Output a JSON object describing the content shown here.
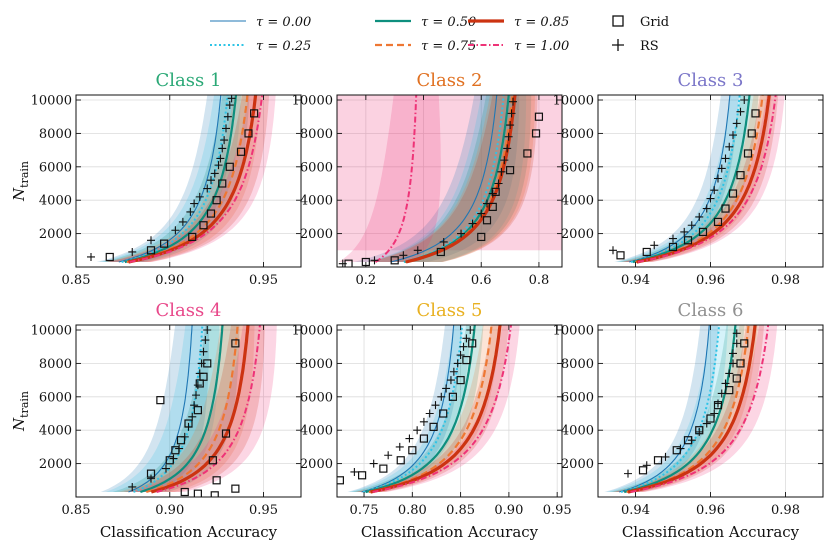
{
  "chart_data": {
    "type": "line",
    "legend": {
      "placement": "top",
      "tau_entries": [
        {
          "label": "τ = 0.00",
          "color": "#1f77b4",
          "style": "solid-thin"
        },
        {
          "label": "τ = 0.25",
          "color": "#2ec4e6",
          "style": "dotted"
        },
        {
          "label": "τ = 0.50",
          "color": "#0e8f7e",
          "style": "solid"
        },
        {
          "label": "τ = 0.75",
          "color": "#ee7733",
          "style": "dashed"
        },
        {
          "label": "τ = 0.85",
          "color": "#cc3311",
          "style": "solid-thick"
        },
        {
          "label": "τ = 1.00",
          "color": "#ee3377",
          "style": "dashdot"
        }
      ],
      "marker_entries": [
        {
          "label": "Grid",
          "marker": "square"
        },
        {
          "label": "RS",
          "marker": "plus"
        }
      ]
    },
    "y_label": "N_train",
    "x_label": "Classification Accuracy",
    "y_ticks": [
      2000,
      4000,
      6000,
      8000,
      10000
    ],
    "y_tick_labels": [
      "2000",
      "4000",
      "6000",
      "8000",
      "10000"
    ],
    "ylim": [
      0,
      10300
    ],
    "panels": [
      {
        "title": "Class 1",
        "title_color": "#2aa876",
        "xlim": [
          0.85,
          0.97
        ],
        "xticks": [
          0.85,
          0.9,
          0.95
        ],
        "xtick_labels": [
          "0.85",
          "0.90",
          "0.95"
        ],
        "show_xlabel": false,
        "band_width": 0.012,
        "curves": [
          {
            "tau": "0.00",
            "a": 0.86,
            "b": 0.937
          },
          {
            "tau": "0.25",
            "a": 0.861,
            "b": 0.941
          },
          {
            "tau": "0.50",
            "a": 0.862,
            "b": 0.946
          },
          {
            "tau": "0.75",
            "a": 0.862,
            "b": 0.953
          },
          {
            "tau": "0.85",
            "a": 0.862,
            "b": 0.958
          },
          {
            "tau": "1.00",
            "a": 0.862,
            "b": 0.962
          }
        ],
        "grid_points": [
          [
            0.868,
            600
          ],
          [
            0.89,
            1000
          ],
          [
            0.897,
            1400
          ],
          [
            0.912,
            1800
          ],
          [
            0.918,
            2500
          ],
          [
            0.922,
            3200
          ],
          [
            0.925,
            4000
          ],
          [
            0.928,
            5000
          ],
          [
            0.932,
            6000
          ],
          [
            0.938,
            6900
          ],
          [
            0.942,
            8000
          ],
          [
            0.945,
            9200
          ]
        ],
        "rs_points": [
          [
            0.858,
            600
          ],
          [
            0.88,
            900
          ],
          [
            0.89,
            1600
          ],
          [
            0.903,
            2200
          ],
          [
            0.907,
            2700
          ],
          [
            0.911,
            3300
          ],
          [
            0.913,
            3800
          ],
          [
            0.916,
            4200
          ],
          [
            0.92,
            4700
          ],
          [
            0.922,
            5200
          ],
          [
            0.924,
            5600
          ],
          [
            0.926,
            6100
          ],
          [
            0.927,
            6500
          ],
          [
            0.928,
            7100
          ],
          [
            0.929,
            7600
          ],
          [
            0.93,
            8300
          ],
          [
            0.931,
            9000
          ],
          [
            0.932,
            9700
          ],
          [
            0.933,
            10100
          ]
        ]
      },
      {
        "title": "Class 2",
        "title_color": "#e07020",
        "xlim": [
          0.1,
          0.88
        ],
        "xticks": [
          0.2,
          0.4,
          0.6,
          0.8
        ],
        "xtick_labels": [
          "0.2",
          "0.4",
          "0.6",
          "0.8"
        ],
        "show_xlabel": false,
        "band_width": 0.13,
        "curves": [
          {
            "tau": "0.00",
            "a": 0.2,
            "b": 0.72
          },
          {
            "tau": "0.25",
            "a": 0.25,
            "b": 0.74
          },
          {
            "tau": "0.50",
            "a": 0.25,
            "b": 0.76
          },
          {
            "tau": "0.75",
            "a": 0.25,
            "b": 0.775
          },
          {
            "tau": "0.85",
            "a": 0.25,
            "b": 0.785
          },
          {
            "tau": "1.00",
            "a": 0.2,
            "b": 0.4
          }
        ],
        "wide_band": {
          "tau": "1.00",
          "x_from": 0.1,
          "x_to": 0.88
        },
        "grid_points": [
          [
            0.14,
            200
          ],
          [
            0.2,
            300
          ],
          [
            0.3,
            400
          ],
          [
            0.46,
            900
          ],
          [
            0.6,
            1800
          ],
          [
            0.62,
            2800
          ],
          [
            0.64,
            3600
          ],
          [
            0.65,
            4500
          ],
          [
            0.7,
            5800
          ],
          [
            0.76,
            6800
          ],
          [
            0.79,
            8000
          ],
          [
            0.8,
            9000
          ]
        ],
        "rs_points": [
          [
            0.12,
            200
          ],
          [
            0.23,
            400
          ],
          [
            0.33,
            700
          ],
          [
            0.38,
            1000
          ],
          [
            0.47,
            1500
          ],
          [
            0.53,
            2000
          ],
          [
            0.57,
            2600
          ],
          [
            0.6,
            3200
          ],
          [
            0.62,
            3800
          ],
          [
            0.64,
            4400
          ],
          [
            0.66,
            5000
          ],
          [
            0.67,
            5700
          ],
          [
            0.68,
            6400
          ],
          [
            0.69,
            7100
          ],
          [
            0.695,
            7800
          ],
          [
            0.7,
            8500
          ],
          [
            0.705,
            9200
          ],
          [
            0.71,
            9900
          ]
        ]
      },
      {
        "title": "Class 3",
        "title_color": "#7a75c8",
        "xlim": [
          0.93,
          0.99
        ],
        "xticks": [
          0.94,
          0.96,
          0.98
        ],
        "xtick_labels": [
          "0.94",
          "0.96",
          "0.98"
        ],
        "show_xlabel": false,
        "band_width": 0.004,
        "curves": [
          {
            "tau": "0.00",
            "a": 0.932,
            "b": 0.97
          },
          {
            "tau": "0.25",
            "a": 0.932,
            "b": 0.973
          },
          {
            "tau": "0.50",
            "a": 0.932,
            "b": 0.976
          },
          {
            "tau": "0.75",
            "a": 0.932,
            "b": 0.98
          },
          {
            "tau": "0.85",
            "a": 0.932,
            "b": 0.982
          },
          {
            "tau": "1.00",
            "a": 0.932,
            "b": 0.984
          }
        ],
        "grid_points": [
          [
            0.936,
            700
          ],
          [
            0.943,
            900
          ],
          [
            0.95,
            1200
          ],
          [
            0.954,
            1600
          ],
          [
            0.958,
            2100
          ],
          [
            0.962,
            2700
          ],
          [
            0.964,
            3500
          ],
          [
            0.966,
            4400
          ],
          [
            0.968,
            5500
          ],
          [
            0.97,
            6800
          ],
          [
            0.971,
            8000
          ],
          [
            0.972,
            9200
          ]
        ],
        "rs_points": [
          [
            0.934,
            1000
          ],
          [
            0.945,
            1300
          ],
          [
            0.95,
            1700
          ],
          [
            0.953,
            2100
          ],
          [
            0.955,
            2500
          ],
          [
            0.957,
            3000
          ],
          [
            0.959,
            3500
          ],
          [
            0.96,
            4100
          ],
          [
            0.961,
            4600
          ],
          [
            0.962,
            5300
          ],
          [
            0.963,
            5900
          ],
          [
            0.964,
            6500
          ],
          [
            0.965,
            7200
          ],
          [
            0.966,
            7900
          ],
          [
            0.967,
            8600
          ],
          [
            0.968,
            9300
          ],
          [
            0.969,
            10000
          ]
        ]
      },
      {
        "title": "Class 4",
        "title_color": "#e8488a",
        "xlim": [
          0.85,
          0.97
        ],
        "xticks": [
          0.85,
          0.9,
          0.95
        ],
        "xtick_labels": [
          "0.85",
          "0.90",
          "0.95"
        ],
        "show_xlabel": true,
        "band_width": 0.015,
        "curves": [
          {
            "tau": "0.00",
            "a": 0.87,
            "b": 0.918
          },
          {
            "tau": "0.25",
            "a": 0.872,
            "b": 0.924
          },
          {
            "tau": "0.50",
            "a": 0.874,
            "b": 0.936
          },
          {
            "tau": "0.75",
            "a": 0.876,
            "b": 0.945
          },
          {
            "tau": "0.85",
            "a": 0.878,
            "b": 0.951
          },
          {
            "tau": "1.00",
            "a": 0.88,
            "b": 0.958
          }
        ],
        "grid_points": [
          [
            0.89,
            1400
          ],
          [
            0.9,
            2200
          ],
          [
            0.903,
            2800
          ],
          [
            0.906,
            3400
          ],
          [
            0.91,
            4400
          ],
          [
            0.915,
            5200
          ],
          [
            0.895,
            5800
          ],
          [
            0.916,
            6800
          ],
          [
            0.918,
            7200
          ],
          [
            0.92,
            8000
          ],
          [
            0.935,
            9200
          ],
          [
            0.93,
            3800
          ],
          [
            0.923,
            2200
          ],
          [
            0.925,
            1000
          ],
          [
            0.908,
            300
          ],
          [
            0.915,
            200
          ],
          [
            0.935,
            500
          ],
          [
            0.924,
            100
          ]
        ],
        "rs_points": [
          [
            0.88,
            600
          ],
          [
            0.89,
            1100
          ],
          [
            0.898,
            1700
          ],
          [
            0.902,
            2300
          ],
          [
            0.905,
            2900
          ],
          [
            0.908,
            3600
          ],
          [
            0.91,
            4200
          ],
          [
            0.912,
            4800
          ],
          [
            0.913,
            5500
          ],
          [
            0.914,
            6100
          ],
          [
            0.915,
            6700
          ],
          [
            0.916,
            7400
          ],
          [
            0.917,
            8000
          ],
          [
            0.918,
            8700
          ],
          [
            0.919,
            9400
          ],
          [
            0.92,
            10000
          ]
        ]
      },
      {
        "title": "Class 5",
        "title_color": "#e8b020",
        "xlim": [
          0.722,
          0.955
        ],
        "xticks": [
          0.75,
          0.8,
          0.85,
          0.9,
          0.95
        ],
        "xtick_labels": [
          "0.75",
          "0.80",
          "0.85",
          "0.90",
          "0.95"
        ],
        "show_xlabel": true,
        "band_width": 0.015,
        "curves": [
          {
            "tau": "0.00",
            "a": 0.725,
            "b": 0.86
          },
          {
            "tau": "0.25",
            "a": 0.725,
            "b": 0.87
          },
          {
            "tau": "0.50",
            "a": 0.725,
            "b": 0.885
          },
          {
            "tau": "0.75",
            "a": 0.725,
            "b": 0.905
          },
          {
            "tau": "0.85",
            "a": 0.725,
            "b": 0.915
          },
          {
            "tau": "1.00",
            "a": 0.725,
            "b": 0.928
          }
        ],
        "grid_points": [
          [
            0.725,
            1000
          ],
          [
            0.748,
            1300
          ],
          [
            0.77,
            1700
          ],
          [
            0.788,
            2200
          ],
          [
            0.8,
            2800
          ],
          [
            0.812,
            3500
          ],
          [
            0.822,
            4200
          ],
          [
            0.832,
            5000
          ],
          [
            0.842,
            6000
          ],
          [
            0.85,
            7000
          ],
          [
            0.856,
            8200
          ],
          [
            0.862,
            9200
          ]
        ],
        "rs_points": [
          [
            0.74,
            1500
          ],
          [
            0.76,
            2000
          ],
          [
            0.775,
            2500
          ],
          [
            0.787,
            3000
          ],
          [
            0.797,
            3500
          ],
          [
            0.805,
            4000
          ],
          [
            0.812,
            4500
          ],
          [
            0.818,
            5000
          ],
          [
            0.824,
            5500
          ],
          [
            0.83,
            6000
          ],
          [
            0.835,
            6500
          ],
          [
            0.84,
            7000
          ],
          [
            0.843,
            7500
          ],
          [
            0.847,
            8000
          ],
          [
            0.85,
            8500
          ],
          [
            0.853,
            9000
          ],
          [
            0.856,
            9500
          ],
          [
            0.86,
            10000
          ]
        ]
      },
      {
        "title": "Class 6",
        "title_color": "#909090",
        "xlim": [
          0.93,
          0.99
        ],
        "xticks": [
          0.94,
          0.96,
          0.98
        ],
        "xtick_labels": [
          "0.94",
          "0.96",
          "0.98"
        ],
        "show_xlabel": true,
        "band_width": 0.004,
        "curves": [
          {
            "tau": "0.00",
            "a": 0.93,
            "b": 0.964
          },
          {
            "tau": "0.25",
            "a": 0.93,
            "b": 0.967
          },
          {
            "tau": "0.50",
            "a": 0.93,
            "b": 0.972
          },
          {
            "tau": "0.75",
            "a": 0.93,
            "b": 0.976
          },
          {
            "tau": "0.85",
            "a": 0.93,
            "b": 0.978
          },
          {
            "tau": "1.00",
            "a": 0.93,
            "b": 0.982
          }
        ],
        "grid_points": [
          [
            0.942,
            1600
          ],
          [
            0.946,
            2200
          ],
          [
            0.951,
            2800
          ],
          [
            0.954,
            3400
          ],
          [
            0.957,
            4000
          ],
          [
            0.96,
            4700
          ],
          [
            0.962,
            5500
          ],
          [
            0.965,
            6400
          ],
          [
            0.967,
            7100
          ],
          [
            0.968,
            8000
          ],
          [
            0.969,
            9200
          ]
        ],
        "rs_points": [
          [
            0.938,
            1400
          ],
          [
            0.943,
            1900
          ],
          [
            0.948,
            2400
          ],
          [
            0.952,
            2900
          ],
          [
            0.955,
            3400
          ],
          [
            0.957,
            3900
          ],
          [
            0.959,
            4400
          ],
          [
            0.961,
            5000
          ],
          [
            0.962,
            5600
          ],
          [
            0.963,
            6200
          ],
          [
            0.964,
            6800
          ],
          [
            0.965,
            7400
          ],
          [
            0.966,
            8000
          ],
          [
            0.966,
            8600
          ],
          [
            0.967,
            9200
          ],
          [
            0.967,
            9800
          ]
        ]
      }
    ]
  }
}
